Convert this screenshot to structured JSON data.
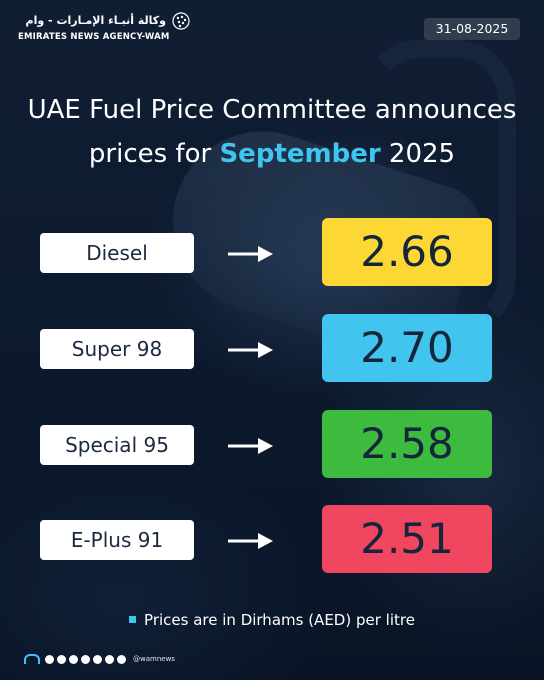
{
  "agency": {
    "name_ar": "وكالة أنبـاء الإمـارات - وام",
    "name_en": "EMIRATES NEWS AGENCY-WAM"
  },
  "date": "31-08-2025",
  "headline": {
    "line1": "UAE Fuel Price Committee announces",
    "line2_prefix": "prices for ",
    "line2_highlight": "September",
    "line2_suffix": " 2025",
    "highlight_color": "#3fc6f0"
  },
  "prices": [
    {
      "fuel": "Diesel",
      "price": "2.66",
      "color": "#fdd835"
    },
    {
      "fuel": "Super 98",
      "price": "2.70",
      "color": "#41c5ef"
    },
    {
      "fuel": "Special 95",
      "price": "2.58",
      "color": "#3dbb3f"
    },
    {
      "fuel": "E-Plus 91",
      "price": "2.51",
      "color": "#f04660"
    }
  ],
  "note": "Prices are in Dirhams (AED) per litre",
  "footer": {
    "social_icons": [
      "x-icon",
      "whatsapp-icon",
      "instagram-icon",
      "facebook-icon",
      "youtube-icon",
      "snapchat-icon",
      "tiktok-icon"
    ],
    "handle": "@wamnews"
  }
}
